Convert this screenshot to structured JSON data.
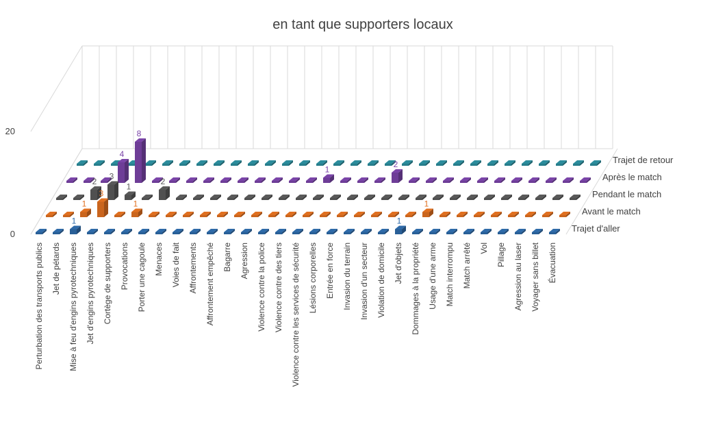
{
  "chart_data": {
    "type": "bar3d",
    "title": "en tant que supporters locaux",
    "categories": [
      "Perturbation des transports publics",
      "Jet de pétards",
      "Mise à feu d'engins pyrotechniques",
      "Jet d'engins pyrotechniques",
      "Cortège de supporters",
      "Provocations",
      "Porter une cagoule",
      "Menaces",
      "Voies de fait",
      "Affrontements",
      "Affrontement empêché",
      "Bagarre",
      "Agression",
      "Violence contre la police",
      "Violence contre des tiers",
      "Violence contre les services de sécurité",
      "Lésions corporelles",
      "Entrée en force",
      "Invasion du terrain",
      "Invasion d'un secteur",
      "Violation de domicile",
      "Jet d'objets",
      "Dommages à la propriété",
      "Usage d'une arme",
      "Match interrompu",
      "Match arrêté",
      "Vol",
      "Pillage",
      "Agression au laser",
      "Voyager sans billet",
      "Évacuation"
    ],
    "series": [
      {
        "name": "Trajet d'aller",
        "color": "#2e6aa8",
        "values": [
          0,
          0,
          1,
          0,
          0,
          0,
          0,
          0,
          0,
          0,
          0,
          0,
          0,
          0,
          0,
          0,
          0,
          0,
          0,
          0,
          0,
          1,
          0,
          0,
          0,
          0,
          0,
          0,
          0,
          0,
          0
        ]
      },
      {
        "name": "Avant le match",
        "color": "#e07020",
        "values": [
          0,
          0,
          1,
          3,
          0,
          1,
          0,
          0,
          0,
          0,
          0,
          0,
          0,
          0,
          0,
          0,
          0,
          0,
          0,
          0,
          0,
          0,
          1,
          0,
          0,
          0,
          0,
          0,
          0,
          0,
          0
        ]
      },
      {
        "name": "Pendant le match",
        "color": "#595959",
        "values": [
          0,
          0,
          2,
          3,
          1,
          0,
          2,
          0,
          0,
          0,
          0,
          0,
          0,
          0,
          0,
          0,
          0,
          0,
          0,
          0,
          0,
          0,
          0,
          0,
          0,
          0,
          0,
          0,
          0,
          0,
          0
        ]
      },
      {
        "name": "Après le match",
        "color": "#7a44a8",
        "values": [
          0,
          0,
          0,
          4,
          8,
          0,
          0,
          0,
          0,
          0,
          0,
          0,
          0,
          0,
          0,
          1,
          0,
          0,
          0,
          2,
          0,
          0,
          0,
          0,
          0,
          0,
          0,
          0,
          0,
          0,
          0
        ]
      },
      {
        "name": "Trajet de retour",
        "color": "#2b8c9c",
        "values": [
          0,
          0,
          0,
          0,
          0,
          0,
          0,
          0,
          0,
          0,
          0,
          0,
          0,
          0,
          0,
          0,
          0,
          0,
          0,
          0,
          0,
          0,
          0,
          0,
          0,
          0,
          0,
          0,
          0,
          0,
          0
        ]
      }
    ],
    "ylim": [
      0,
      20
    ],
    "yticks": [
      0,
      20
    ],
    "grid": true
  }
}
